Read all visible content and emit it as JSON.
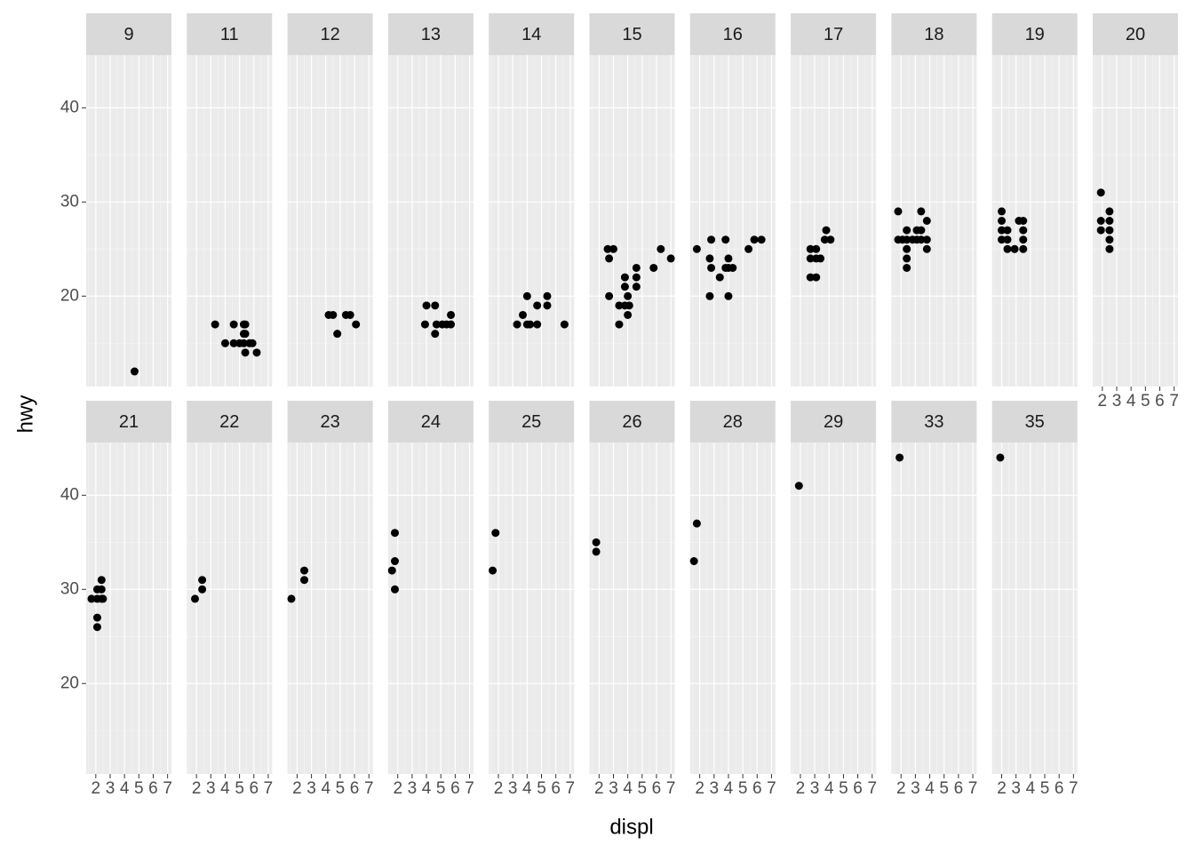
{
  "chart_data": {
    "type": "scatter",
    "x_label": "displ",
    "y_label": "hwy",
    "color": "#000000",
    "xlim": [
      1.33,
      7.27
    ],
    "ylim": [
      10.4,
      45.6
    ],
    "xticks": [
      2,
      3,
      4,
      5,
      6,
      7
    ],
    "yticks": [
      20,
      30,
      40
    ],
    "grid": true,
    "panels": [
      {
        "title": "9",
        "x": [
          4.7
        ],
        "y": [
          12
        ]
      },
      {
        "title": "11",
        "x": [
          3.3,
          4.0,
          4.6,
          4.6,
          5.3,
          5.3,
          5.3,
          5.4,
          5.7,
          5.9,
          5.4,
          5.4,
          5.0,
          6.2
        ],
        "y": [
          17,
          15,
          17,
          15,
          17,
          16,
          15,
          14,
          15,
          15,
          16,
          17,
          15,
          14
        ]
      },
      {
        "title": "12",
        "x": [
          4.2,
          4.5,
          4.8,
          5.4,
          5.7,
          6.1
        ],
        "y": [
          18,
          18,
          16,
          18,
          18,
          17
        ]
      },
      {
        "title": "13",
        "x": [
          4.0,
          4.6,
          3.9,
          4.6,
          4.7,
          5.1,
          5.4,
          5.7,
          5.7
        ],
        "y": [
          19,
          19,
          17,
          16,
          17,
          17,
          17,
          18,
          17
        ]
      },
      {
        "title": "14",
        "x": [
          3.3,
          3.7,
          4.0,
          4.0,
          4.2,
          4.7,
          4.7,
          5.4,
          5.4,
          6.6
        ],
        "y": [
          17,
          18,
          20,
          17,
          17,
          19,
          17,
          20,
          19,
          17
        ]
      },
      {
        "title": "15",
        "x": [
          2.6,
          3.0,
          2.7,
          2.7,
          3.4,
          3.4,
          3.8,
          3.8,
          3.8,
          4.0,
          4.0,
          4.1,
          4.6,
          4.6,
          4.6,
          5.8,
          6.3,
          7.0
        ],
        "y": [
          25,
          25,
          24,
          20,
          17,
          19,
          19,
          22,
          21,
          20,
          18,
          19,
          23,
          22,
          21,
          23,
          25,
          24
        ]
      },
      {
        "title": "16",
        "x": [
          1.8,
          2.8,
          2.7,
          2.8,
          2.7,
          3.4,
          3.8,
          4.0,
          3.8,
          4.0,
          4.3,
          4.0,
          5.4,
          5.8,
          6.3
        ],
        "y": [
          25,
          26,
          24,
          23,
          20,
          22,
          26,
          24,
          23,
          23,
          23,
          20,
          25,
          26,
          26
        ]
      },
      {
        "title": "17",
        "x": [
          2.7,
          3.1,
          2.7,
          3.1,
          3.4,
          2.7,
          3.1,
          3.8,
          3.7,
          4.1
        ],
        "y": [
          25,
          25,
          24,
          24,
          24,
          22,
          22,
          27,
          26,
          26
        ]
      },
      {
        "title": "18",
        "x": [
          1.8,
          1.8,
          2.4,
          2.1,
          2.4,
          2.4,
          2.4,
          2.4,
          2.8,
          3.1,
          3.1,
          3.4,
          3.4,
          3.4,
          3.8,
          3.8,
          3.8
        ],
        "y": [
          29,
          26,
          27,
          26,
          26,
          25,
          24,
          23,
          26,
          27,
          26,
          29,
          27,
          26,
          28,
          26,
          25
        ]
      },
      {
        "title": "19",
        "x": [
          2.0,
          2.0,
          2.0,
          2.0,
          2.4,
          2.4,
          2.4,
          2.9,
          3.2,
          3.5,
          3.5,
          3.5,
          3.5
        ],
        "y": [
          29,
          28,
          27,
          26,
          27,
          26,
          25,
          25,
          28,
          28,
          27,
          26,
          25
        ]
      },
      {
        "title": "20",
        "x": [
          1.9,
          1.9,
          1.9,
          2.5,
          2.5,
          2.5,
          2.5,
          2.5
        ],
        "y": [
          31,
          28,
          27,
          29,
          28,
          27,
          26,
          25
        ]
      },
      {
        "title": "21",
        "x": [
          1.7,
          2.1,
          2.1,
          2.1,
          2.1,
          2.4,
          2.4,
          2.4,
          2.5
        ],
        "y": [
          29,
          30,
          29,
          27,
          26,
          31,
          30,
          29,
          29
        ]
      },
      {
        "title": "22",
        "x": [
          1.9,
          2.4,
          2.4
        ],
        "y": [
          29,
          31,
          30
        ]
      },
      {
        "title": "23",
        "x": [
          1.6,
          2.5,
          2.5
        ],
        "y": [
          29,
          32,
          31
        ]
      },
      {
        "title": "24",
        "x": [
          1.6,
          1.8,
          1.8,
          1.8
        ],
        "y": [
          32,
          36,
          33,
          30
        ]
      },
      {
        "title": "25",
        "x": [
          1.6,
          1.8
        ],
        "y": [
          32,
          36
        ]
      },
      {
        "title": "26",
        "x": [
          1.8,
          1.8
        ],
        "y": [
          35,
          34
        ]
      },
      {
        "title": "28",
        "x": [
          1.6,
          1.8
        ],
        "y": [
          33,
          37
        ]
      },
      {
        "title": "29",
        "x": [
          1.9
        ],
        "y": [
          41
        ]
      },
      {
        "title": "33",
        "x": [
          1.9
        ],
        "y": [
          44
        ]
      },
      {
        "title": "35",
        "x": [
          1.9
        ],
        "y": [
          44
        ]
      }
    ]
  }
}
